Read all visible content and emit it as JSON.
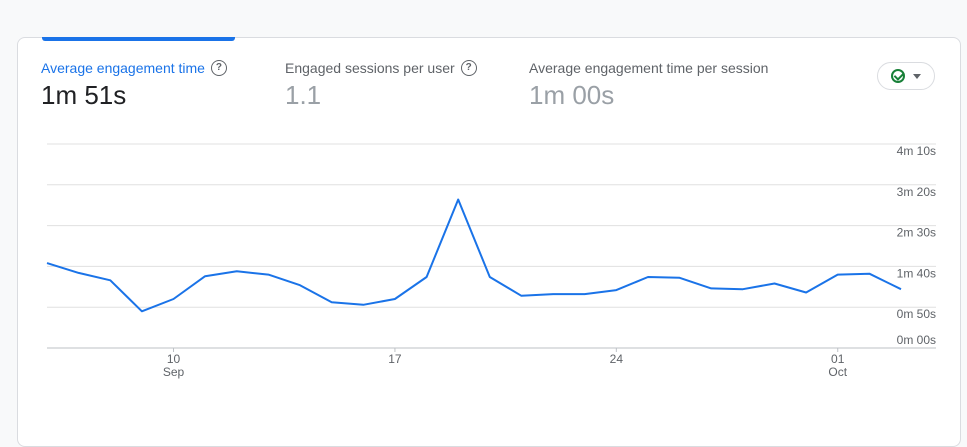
{
  "metrics": [
    {
      "label": "Average engagement time",
      "value": "1m 51s",
      "help": "?"
    },
    {
      "label": "Engaged sessions per user",
      "value": "1.1",
      "help": "?"
    },
    {
      "label": "Average engagement time per session",
      "value": "1m 00s"
    }
  ],
  "colors": {
    "accent": "#1a73e8",
    "line": "#1a73e8",
    "grid": "#e0e0e0",
    "check": "#188038"
  },
  "compare_button": {
    "icon": "check-circle-icon",
    "dropdown_icon": "caret-down-icon"
  },
  "chart_data": {
    "type": "line",
    "y_tick_labels": [
      "4m 10s",
      "3m 20s",
      "2m 30s",
      "1m 40s",
      "0m 50s",
      "0m 00s"
    ],
    "y_ticks_seconds": [
      250,
      200,
      150,
      100,
      50,
      0
    ],
    "ylim": [
      0,
      250
    ],
    "x_ticks": [
      {
        "index": 4,
        "label": "10",
        "sublabel": "Sep"
      },
      {
        "index": 11,
        "label": "17",
        "sublabel": ""
      },
      {
        "index": 18,
        "label": "24",
        "sublabel": ""
      },
      {
        "index": 25,
        "label": "01",
        "sublabel": "Oct"
      }
    ],
    "x_dates": [
      "Sep 6",
      "Sep 7",
      "Sep 8",
      "Sep 9",
      "Sep 10",
      "Sep 11",
      "Sep 12",
      "Sep 13",
      "Sep 14",
      "Sep 15",
      "Sep 16",
      "Sep 17",
      "Sep 18",
      "Sep 19",
      "Sep 20",
      "Sep 21",
      "Sep 22",
      "Sep 23",
      "Sep 24",
      "Sep 25",
      "Sep 26",
      "Sep 27",
      "Sep 28",
      "Sep 29",
      "Sep 30",
      "Oct 1",
      "Oct 2",
      "Oct 3"
    ],
    "series": [
      {
        "values": [
          104,
          92,
          83,
          45,
          60,
          88,
          94,
          90,
          77,
          56,
          53,
          60,
          87,
          182,
          87,
          64,
          66,
          66,
          71,
          87,
          86,
          73,
          72,
          79,
          68,
          90,
          91,
          72
        ]
      }
    ],
    "grid": true,
    "legend": "none"
  }
}
